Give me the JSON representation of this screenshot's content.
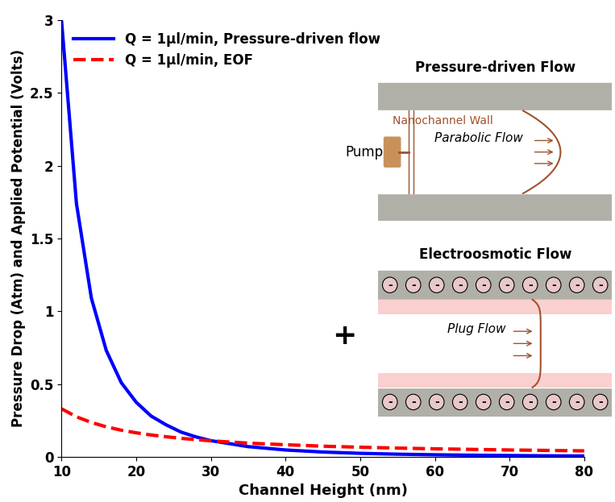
{
  "chart_data": {
    "type": "line",
    "xlabel": "Channel Height (nm)",
    "ylabel": "Pressure Drop (Atm) and Applied Potential (Volts)",
    "x": [
      10,
      12,
      14,
      16,
      18,
      20,
      22,
      24,
      26,
      28,
      30,
      35,
      40,
      45,
      50,
      55,
      60,
      65,
      70,
      75,
      80
    ],
    "series": [
      {
        "name": "Q = 1μl/min, Pressure-driven flow",
        "color": "#0000ff",
        "line_style": "solid",
        "values": [
          3.0,
          1.74,
          1.09,
          0.73,
          0.51,
          0.375,
          0.28,
          0.22,
          0.17,
          0.137,
          0.111,
          0.07,
          0.047,
          0.033,
          0.024,
          0.018,
          0.014,
          0.011,
          0.009,
          0.007,
          0.006
        ]
      },
      {
        "name": "Q = 1μl/min, EOF",
        "color": "#ff0000",
        "line_style": "dashed",
        "values": [
          0.33,
          0.275,
          0.236,
          0.206,
          0.183,
          0.165,
          0.15,
          0.138,
          0.127,
          0.118,
          0.11,
          0.094,
          0.083,
          0.073,
          0.066,
          0.06,
          0.055,
          0.051,
          0.047,
          0.044,
          0.041
        ]
      }
    ],
    "xlim": [
      10,
      80
    ],
    "xticks": [
      10,
      20,
      30,
      40,
      50,
      60,
      70,
      80
    ],
    "ylim": [
      0,
      3
    ],
    "yticks": [
      0,
      0.5,
      1,
      1.5,
      2,
      2.5,
      3
    ],
    "grid": false,
    "legend": "upper left",
    "annotations": {
      "pressure_driven_flow": {
        "title": "Pressure-driven Flow",
        "wall_label": "Nanochannel Wall",
        "pump_label": "Pump",
        "flow_label": "Parabolic Flow"
      },
      "plus": "+",
      "electroosmotic_flow": {
        "title": "Electroosmotic Flow",
        "flow_label": "Plug Flow",
        "charge": "-"
      }
    }
  }
}
